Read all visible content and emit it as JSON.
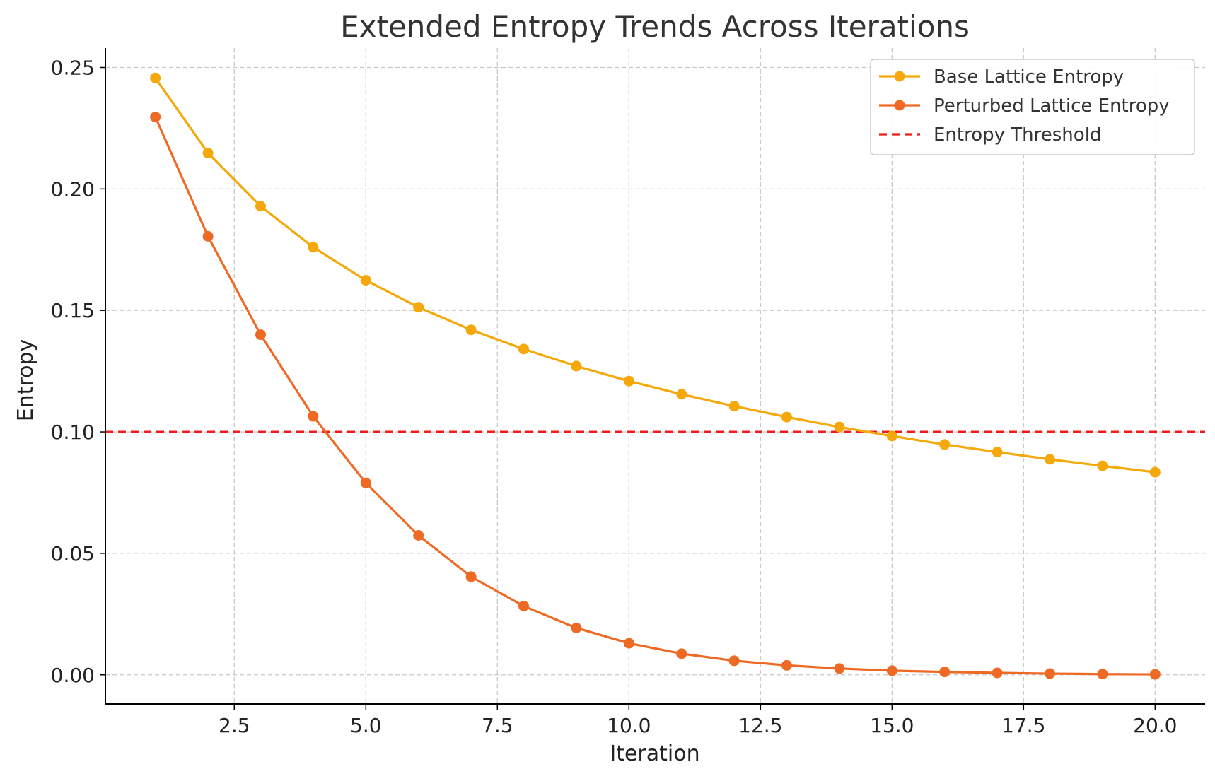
{
  "chart_data": {
    "type": "line",
    "title": "Extended Entropy Trends Across Iterations",
    "xlabel": "Iteration",
    "ylabel": "Entropy",
    "xlim": [
      0.05,
      20.95
    ],
    "ylim": [
      -0.012,
      0.258
    ],
    "xticks": [
      2.5,
      5.0,
      7.5,
      10.0,
      12.5,
      15.0,
      17.5,
      20.0
    ],
    "xtick_labels": [
      "2.5",
      "5.0",
      "7.5",
      "10.0",
      "12.5",
      "15.0",
      "17.5",
      "20.0"
    ],
    "yticks": [
      0.0,
      0.05,
      0.1,
      0.15,
      0.2,
      0.25
    ],
    "ytick_labels": [
      "0.00",
      "0.05",
      "0.10",
      "0.15",
      "0.20",
      "0.25"
    ],
    "grid": true,
    "legend_position": "top-right",
    "x": [
      1,
      2,
      3,
      4,
      5,
      6,
      7,
      8,
      9,
      10,
      11,
      12,
      13,
      14,
      15,
      16,
      17,
      18,
      19,
      20
    ],
    "series": [
      {
        "name": "Base Lattice Entropy",
        "color": "#f5a80a",
        "style": "solid-marker",
        "values": [
          0.2457,
          0.2148,
          0.1929,
          0.176,
          0.1624,
          0.1513,
          0.142,
          0.1341,
          0.1271,
          0.1209,
          0.1155,
          0.1106,
          0.1061,
          0.102,
          0.0983,
          0.0948,
          0.0917,
          0.0887,
          0.086,
          0.0834
        ]
      },
      {
        "name": "Perturbed Lattice Entropy",
        "color": "#ee6a24",
        "style": "solid-marker",
        "values": [
          0.2296,
          0.1805,
          0.14,
          0.1064,
          0.079,
          0.0574,
          0.0404,
          0.0283,
          0.0193,
          0.013,
          0.0087,
          0.0058,
          0.0039,
          0.0026,
          0.0017,
          0.0012,
          0.0008,
          0.0005,
          0.0003,
          0.0002
        ]
      },
      {
        "name": "Entropy Threshold",
        "color": "#ee1c1c",
        "style": "dashed",
        "constant": 0.1
      }
    ]
  }
}
